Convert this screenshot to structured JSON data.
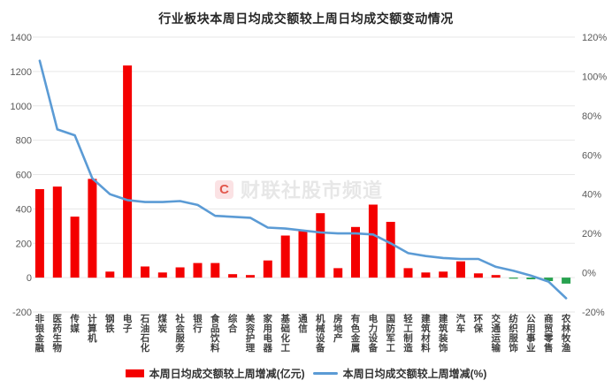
{
  "title": "行业板块本周日均成交额较上周日均成交额变动情况",
  "watermark": {
    "logo_letter": "C",
    "text": "财联社股市频道"
  },
  "legend": {
    "bar_label": "本周日均成交额较上周增减(亿元)",
    "line_label": "本周日均成交额较上周增减(%)"
  },
  "colors": {
    "bar_positive": "#f40000",
    "bar_negative": "#27a24f",
    "line": "#5b9bd5",
    "grid": "#e7e7e7",
    "axis_text": "#595959",
    "x_label_text": "#404040",
    "title_text": "#262626",
    "watermark_logo_bg": "#fbe2e4",
    "watermark_logo_letter": "#e2574c",
    "watermark_text": "#e7e7e7"
  },
  "chart_data": {
    "type": "combo-bar-line",
    "title": "行业板块本周日均成交额较上周日均成交额变动情况",
    "grid": true,
    "legend_position": "bottom",
    "categories": [
      "非银金融",
      "医药生物",
      "传媒",
      "计算机",
      "钢铁",
      "电子",
      "石油石化",
      "煤炭",
      "社会服务",
      "银行",
      "食品饮料",
      "综合",
      "美容护理",
      "家用电器",
      "基础化工",
      "通信",
      "机械设备",
      "房地产",
      "有色金属",
      "电力设备",
      "国防军工",
      "轻工制造",
      "建筑材料",
      "建筑装饰",
      "汽车",
      "环保",
      "交通运输",
      "纺织服饰",
      "公用事业",
      "商贸零售",
      "农林牧渔"
    ],
    "series": [
      {
        "name": "本周日均成交额较上周增减(亿元)",
        "type": "bar",
        "axis": "left",
        "values": [
          515,
          530,
          355,
          575,
          35,
          1235,
          65,
          30,
          60,
          85,
          85,
          20,
          15,
          100,
          245,
          275,
          375,
          55,
          295,
          425,
          325,
          55,
          30,
          35,
          95,
          25,
          15,
          -5,
          -10,
          -20,
          -35
        ]
      },
      {
        "name": "本周日均成交额较上周增减(%)",
        "type": "line",
        "axis": "right",
        "values": [
          108,
          73,
          70,
          48,
          40,
          37,
          36,
          36,
          36.5,
          34.5,
          29,
          28.5,
          28,
          23,
          22.5,
          21.5,
          20.5,
          20,
          20,
          19.5,
          15,
          10,
          8.5,
          7.5,
          7,
          7,
          3,
          1,
          -1.5,
          -4.5,
          -13
        ]
      }
    ],
    "left_axis": {
      "label": "亿元",
      "min": -200,
      "max": 1400,
      "step": 200,
      "tick_values": [
        1400,
        1200,
        1000,
        800,
        600,
        400,
        200,
        0,
        -200
      ],
      "tick_labels": [
        "1400",
        "1200",
        "1000",
        "800",
        "600",
        "400",
        "200",
        "0",
        "-200"
      ]
    },
    "right_axis": {
      "label": "%",
      "min": -20,
      "max": 120,
      "step": 20,
      "tick_values": [
        120,
        100,
        80,
        60,
        40,
        20,
        0,
        -20
      ],
      "tick_labels": [
        "120%",
        "100%",
        "80%",
        "60%",
        "40%",
        "20%",
        "0%",
        "-20%"
      ]
    }
  }
}
